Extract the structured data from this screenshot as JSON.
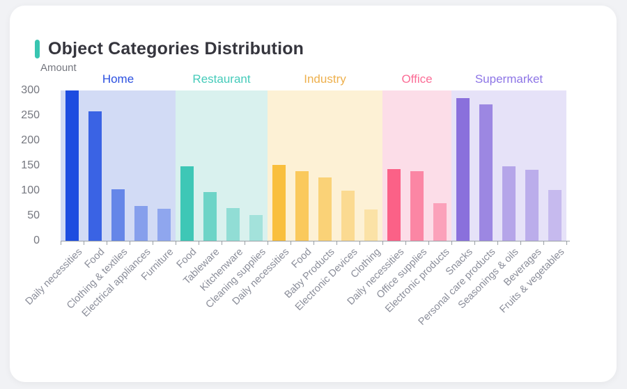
{
  "header": {
    "title": "Object Categories Distribution",
    "accent_color": "#38c5b1"
  },
  "chart_data": {
    "type": "bar",
    "title": "Object Categories Distribution",
    "xlabel": "",
    "ylabel": "Amount",
    "ylim": [
      0,
      300
    ],
    "y_ticks": [
      0,
      50,
      100,
      150,
      200,
      250,
      300
    ],
    "grid": false,
    "legend_position": "top-inside-group-headers",
    "groups": [
      {
        "name": "Home",
        "label_color": "#2b50e0",
        "bar_color": "#1d4ce0",
        "panel_color": "#d2dbf5",
        "categories": [
          "Daily necessities",
          "Food",
          "Clothing & textiles",
          "Electrical appliances",
          "Furniture"
        ],
        "values": [
          300,
          258,
          103,
          69,
          64
        ],
        "bar_opacities": [
          1,
          0.84,
          0.6,
          0.42,
          0.37
        ]
      },
      {
        "name": "Restaurant",
        "label_color": "#45cbba",
        "bar_color": "#3ec7b6",
        "panel_color": "#d9f1ee",
        "categories": [
          "Food",
          "Tableware",
          "Kitchenware",
          "Cleaning supplies"
        ],
        "values": [
          148,
          97,
          65,
          51
        ],
        "bar_opacities": [
          1,
          0.7,
          0.46,
          0.35
        ]
      },
      {
        "name": "Industry",
        "label_color": "#eeb04d",
        "bar_color": "#f9bf3d",
        "panel_color": "#fdf1d5",
        "categories": [
          "Daily necessities",
          "Food",
          "Baby Products",
          "Electronic Devices",
          "Clothing"
        ],
        "values": [
          151,
          139,
          127,
          100,
          63
        ],
        "bar_opacities": [
          1,
          0.8,
          0.62,
          0.45,
          0.3
        ]
      },
      {
        "name": "Office",
        "label_color": "#fb6d96",
        "bar_color": "#fb6187",
        "panel_color": "#fcdde8",
        "categories": [
          "Daily necessities",
          "Office supplies",
          "Electronic products"
        ],
        "values": [
          143,
          139,
          75
        ],
        "bar_opacities": [
          1,
          0.7,
          0.48
        ]
      },
      {
        "name": "Supermarket",
        "label_color": "#8d75e6",
        "bar_color": "#8a70dc",
        "panel_color": "#e6e2f8",
        "categories": [
          "Snacks",
          "Personal care products",
          "Seasonings & oils",
          "Beverages",
          "Fruits & vegetables"
        ],
        "values": [
          285,
          272,
          148,
          141,
          101
        ],
        "bar_opacities": [
          1,
          0.8,
          0.54,
          0.47,
          0.35
        ]
      }
    ]
  }
}
